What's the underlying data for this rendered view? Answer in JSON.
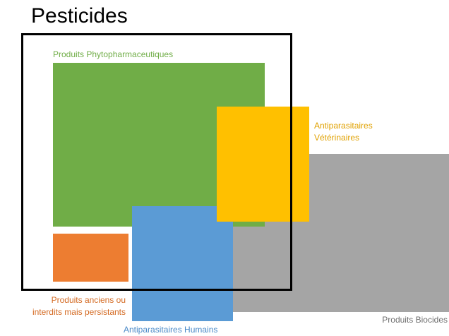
{
  "title": "Pesticides",
  "categories": {
    "phyto": {
      "label": "Produits Phytopharmaceutiques",
      "color": "#70AD47"
    },
    "veterinaires": {
      "label_line1": "Antiparasitaires",
      "label_line2": "Vétérinaires",
      "color": "#FFC000",
      "label_color": "#E0A100"
    },
    "humains": {
      "label": "Antiparasitaires Humains",
      "color": "#5B9BD5",
      "label_color": "#4A8AC8"
    },
    "anciens": {
      "label_line1": "Produits anciens ou",
      "label_line2": "interdits mais persistants",
      "color": "#ED7D31",
      "label_color": "#D46A22"
    },
    "biocides": {
      "label": "Produits Biocides",
      "color": "#A5A5A5",
      "label_color": "#6E6E6E"
    }
  }
}
